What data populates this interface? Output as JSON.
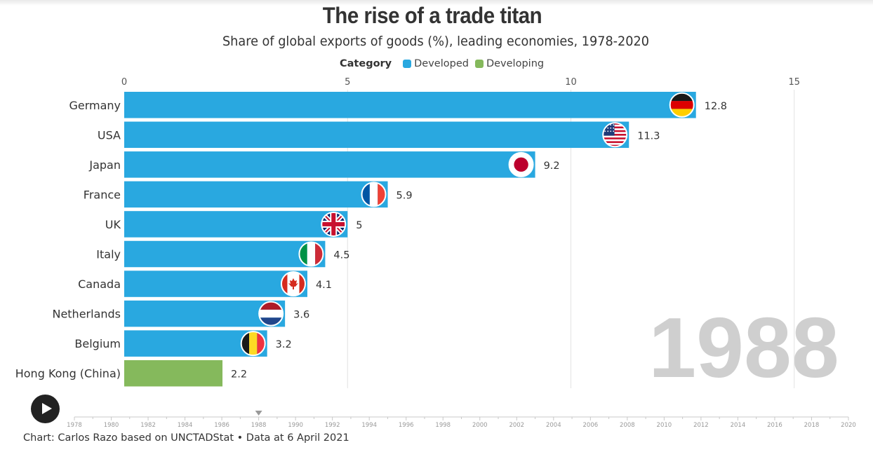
{
  "title": "The rise of a trade titan",
  "subtitle": "Share of global exports of goods (%), leading economies, 1978-2020",
  "legend": {
    "label": "Category",
    "items": [
      {
        "name": "Developed",
        "color": "#29a8e0"
      },
      {
        "name": "Developing",
        "color": "#85b95c"
      }
    ]
  },
  "chart_data": {
    "type": "bar",
    "orientation": "horizontal",
    "current_year": "1988",
    "categories": [
      "Germany",
      "USA",
      "Japan",
      "France",
      "UK",
      "Italy",
      "Canada",
      "Netherlands",
      "Belgium",
      "Hong Kong (China)"
    ],
    "values": [
      12.8,
      11.3,
      9.2,
      5.9,
      5,
      4.5,
      4.1,
      3.6,
      3.2,
      2.2
    ],
    "value_labels": [
      "12.8",
      "11.3",
      "9.2",
      "5.9",
      "5",
      "4.5",
      "4.1",
      "3.6",
      "3.2",
      "2.2"
    ],
    "category_type": [
      "Developed",
      "Developed",
      "Developed",
      "Developed",
      "Developed",
      "Developed",
      "Developed",
      "Developed",
      "Developed",
      "Developing"
    ],
    "flag_icons": [
      "germany-flag-icon",
      "usa-flag-icon",
      "japan-flag-icon",
      "france-flag-icon",
      "uk-flag-icon",
      "italy-flag-icon",
      "canada-flag-icon",
      "netherlands-flag-icon",
      "belgium-flag-icon",
      null
    ],
    "xlim": [
      0,
      16.3
    ],
    "x_ticks": [
      "0",
      "5",
      "10",
      "15"
    ],
    "x_tick_values": [
      0,
      5,
      10,
      15
    ],
    "grid": true,
    "colors": {
      "Developed": "#29a8e0",
      "Developing": "#85b95c"
    }
  },
  "timeline": {
    "start": 1978,
    "end": 2020,
    "current": 1988,
    "labels": [
      "1978",
      "1980",
      "1982",
      "1984",
      "1986",
      "1988",
      "1990",
      "1992",
      "1994",
      "1996",
      "1998",
      "2000",
      "2002",
      "2004",
      "2006",
      "2008",
      "2010",
      "2012",
      "2014",
      "2016",
      "2018",
      "2020"
    ]
  },
  "footer": "Chart: Carlos Razo based on UNCTADStat • Data at 6 April 2021"
}
